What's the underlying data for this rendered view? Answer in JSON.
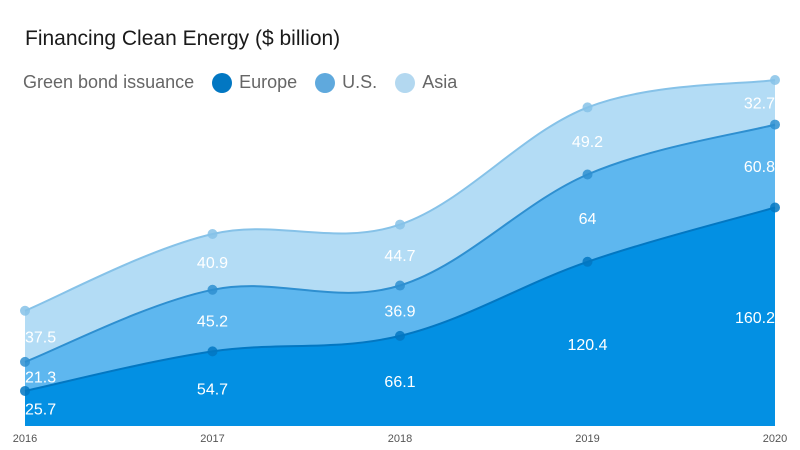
{
  "chart_data": {
    "type": "area",
    "stacked": true,
    "title": "Financing Clean Energy ($ billion)",
    "legend_title": "Green bond issuance",
    "legend_position": "top-left",
    "categories": [
      "2016",
      "2017",
      "2018",
      "2019",
      "2020"
    ],
    "series": [
      {
        "name": "Europe",
        "values": [
          25.7,
          54.7,
          66.1,
          120.4,
          160.2
        ],
        "color": "#0390e3",
        "line": "#0277c2",
        "legend_color": "#0277c2"
      },
      {
        "name": "U.S.",
        "values": [
          21.3,
          45.2,
          36.9,
          64,
          60.8
        ],
        "color": "#5eb7ef",
        "line": "#2e8fd0",
        "legend_color": "#5fa9dd"
      },
      {
        "name": "Asia",
        "values": [
          37.5,
          40.9,
          44.7,
          49.2,
          32.7
        ],
        "color": "#b3dcf5",
        "line": "#86c2e8",
        "legend_color": "#b3d8f0"
      }
    ],
    "xlabel": "",
    "ylabel": "",
    "ylim": [
      0,
      253.7
    ],
    "grid": false,
    "data_labels": true
  }
}
